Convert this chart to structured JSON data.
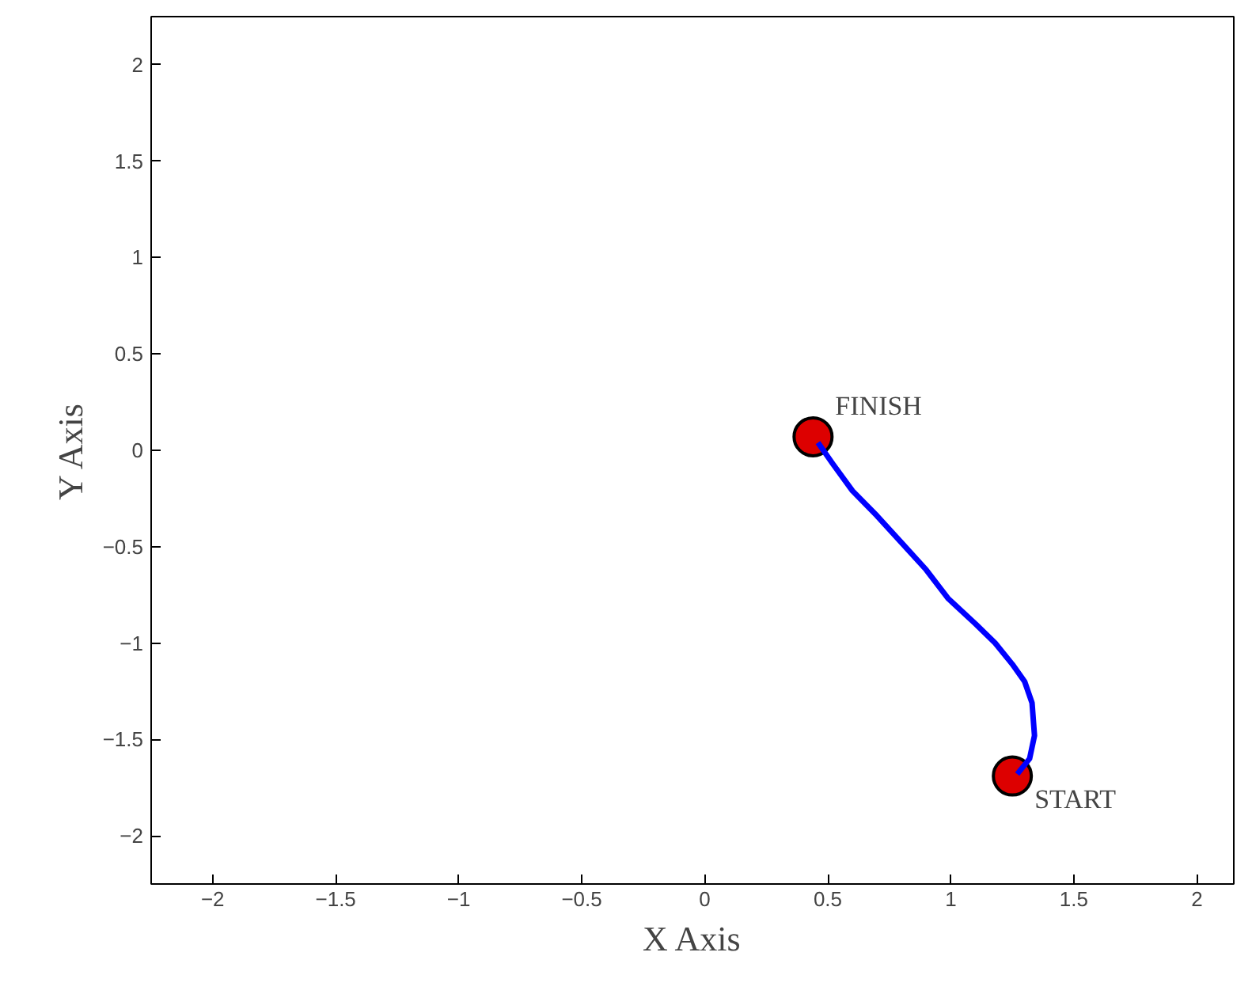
{
  "chart_data": {
    "type": "line",
    "xlabel": "X Axis",
    "ylabel": "Y Axis",
    "xlim": [
      -2.25,
      2.15
    ],
    "ylim": [
      -2.25,
      2.25
    ],
    "xticks": [
      -2,
      -1.5,
      -1,
      -0.5,
      0,
      0.5,
      1,
      1.5,
      2
    ],
    "yticks": [
      -2,
      -1.5,
      -1,
      -0.5,
      0,
      0.5,
      1,
      1.5,
      2
    ],
    "grid": false,
    "series": [
      {
        "color": "#0000ff",
        "line_style": "solid",
        "marker": "none",
        "x": [
          1.27,
          1.32,
          1.34,
          1.33,
          1.3,
          1.25,
          1.18,
          1.1,
          0.99,
          0.9,
          0.8,
          0.7,
          0.6,
          0.52,
          0.46
        ],
        "values": [
          -1.68,
          -1.6,
          -1.48,
          -1.31,
          -1.2,
          -1.11,
          -1.0,
          -0.9,
          -0.77,
          -0.62,
          -0.48,
          -0.34,
          -0.21,
          -0.07,
          0.04
        ]
      },
      {
        "type": "scatter",
        "color": "#dd0000",
        "marker": "circle",
        "x": [
          1.25,
          0.44
        ],
        "values": [
          -1.69,
          0.07
        ]
      }
    ],
    "annotations": [
      {
        "text": "FINISH",
        "x": 0.44,
        "y": 0.07
      },
      {
        "text": "START",
        "x": 1.25,
        "y": -1.69
      }
    ]
  }
}
